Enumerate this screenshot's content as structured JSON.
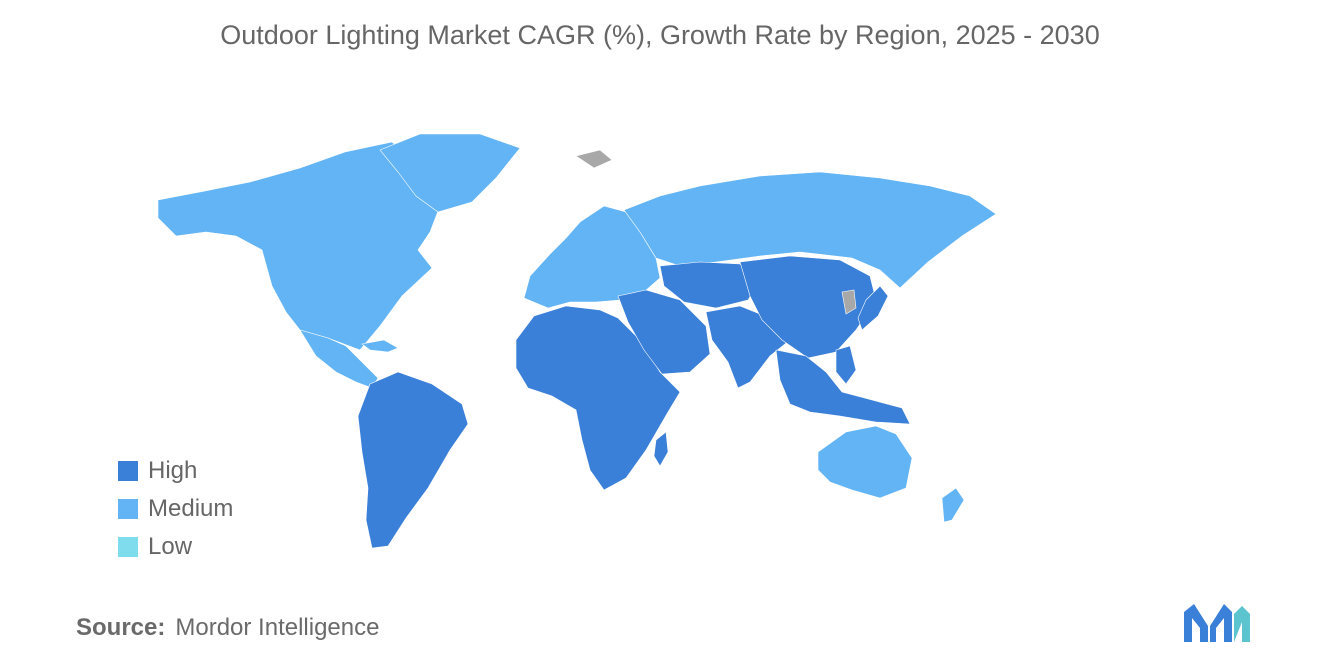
{
  "title": "Outdoor Lighting Market CAGR (%), Growth Rate by Region, 2025 - 2030",
  "colors": {
    "high": "#3a7fd8",
    "medium": "#62b4f4",
    "low": "#7fdcec",
    "no_data": "#a8a8a8"
  },
  "legend": [
    {
      "label": "High",
      "key": "high"
    },
    {
      "label": "Medium",
      "key": "medium"
    },
    {
      "label": "Low",
      "key": "low"
    }
  ],
  "regions": {
    "north_america": "medium",
    "greenland": "medium",
    "central_america": "medium",
    "south_america": "high",
    "europe": "medium",
    "russia": "medium",
    "africa": "high",
    "middle_east": "high",
    "central_asia": "high",
    "south_asia": "high",
    "china_mongolia": "high",
    "japan": "high",
    "southeast_asia": "high",
    "australia": "medium",
    "new_zealand": "medium"
  },
  "source": {
    "label": "Source:",
    "value": "Mordor Intelligence"
  },
  "logo_icon": "mordor-intelligence-logo-icon"
}
